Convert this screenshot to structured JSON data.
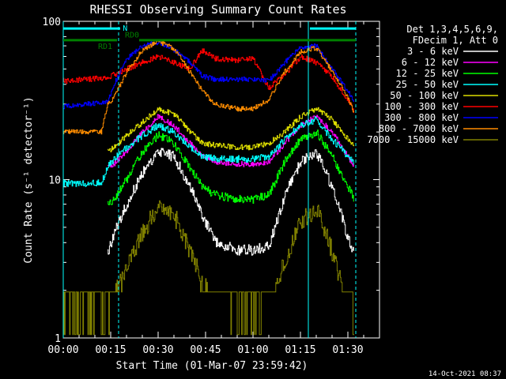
{
  "chart_data": {
    "type": "line",
    "title": "RHESSI Observing Summary Count Rates",
    "xlabel": "Start Time (01-Mar-07 23:59:42)",
    "ylabel": "Count Rate (s⁻¹ detector⁻¹)",
    "yscale": "log",
    "xlim_min": [
      0,
      100
    ],
    "ylim": [
      1,
      100
    ],
    "x_ticks": [
      {
        "v": 0,
        "label": "00:00"
      },
      {
        "v": 15,
        "label": "00:15"
      },
      {
        "v": 30,
        "label": "00:30"
      },
      {
        "v": 45,
        "label": "00:45"
      },
      {
        "v": 60,
        "label": "01:00"
      },
      {
        "v": 75,
        "label": "01:15"
      },
      {
        "v": 90,
        "label": "01:30"
      }
    ],
    "y_ticks": [
      {
        "v": 1,
        "label": "1"
      },
      {
        "v": 10,
        "label": "10"
      },
      {
        "v": 100,
        "label": "100"
      }
    ],
    "legend_placement": "outside-right",
    "legend_header": [
      "Det 1,3,4,5,6,9,",
      "FDecim 1, Att 0"
    ],
    "series": [
      {
        "name": "3 - 6 keV",
        "color": "#ffffff",
        "seed": 11,
        "noise": 0.08,
        "x": [
          14,
          16,
          20,
          25,
          30,
          35,
          40,
          44,
          48,
          55,
          60,
          65,
          70,
          75,
          80,
          85,
          88,
          90,
          92
        ],
        "y": [
          3.5,
          4.5,
          7,
          11,
          15,
          14,
          9,
          6,
          4,
          3.6,
          3.6,
          3.8,
          8,
          13,
          15,
          9,
          6,
          4.2,
          3.4
        ]
      },
      {
        "name": "6 - 12 keV",
        "color": "#ff00ff",
        "seed": 12,
        "noise": 0.04,
        "x": [
          14,
          16,
          20,
          25,
          30,
          35,
          40,
          44,
          48,
          55,
          60,
          65,
          70,
          75,
          80,
          85,
          90,
          92
        ],
        "y": [
          12,
          12.5,
          15,
          20,
          25,
          22,
          17,
          14,
          13,
          12.5,
          12.5,
          13,
          17,
          22,
          25,
          20,
          14,
          12
        ]
      },
      {
        "name": "12 - 25 keV",
        "color": "#00ff00",
        "seed": 13,
        "noise": 0.06,
        "x": [
          14,
          16,
          20,
          25,
          30,
          35,
          40,
          44,
          48,
          55,
          60,
          65,
          70,
          75,
          80,
          85,
          90,
          92
        ],
        "y": [
          7,
          7.5,
          10,
          15,
          19,
          17,
          12,
          9,
          8,
          7.5,
          7.5,
          8,
          13,
          18,
          20,
          14,
          9,
          7.5
        ]
      },
      {
        "name": "25 - 50 keV",
        "color": "#00ffff",
        "seed": 14,
        "noise": 0.05,
        "x": [
          0,
          12,
          14,
          16,
          20,
          25,
          30,
          35,
          40,
          44,
          48,
          55,
          60,
          65,
          70,
          75,
          80,
          85,
          90,
          92
        ],
        "y": [
          9.5,
          9.5,
          12,
          13.5,
          16,
          19,
          22,
          20,
          16,
          14,
          13.5,
          13.5,
          13.5,
          14,
          18,
          22,
          24,
          18,
          14,
          12.5
        ]
      },
      {
        "name": "50 - 100 keV",
        "color": "#dddd00",
        "seed": 15,
        "noise": 0.04,
        "x": [
          14,
          16,
          20,
          25,
          30,
          35,
          40,
          44,
          48,
          55,
          60,
          65,
          70,
          75,
          80,
          85,
          90,
          92
        ],
        "y": [
          15,
          16,
          19,
          23,
          28,
          26,
          20,
          17,
          16.5,
          16,
          16,
          17,
          20,
          25,
          28,
          24,
          18,
          16
        ]
      },
      {
        "name": "100 - 300 keV",
        "color": "#ff0000",
        "seed": 16,
        "noise": 0.04,
        "x": [
          0,
          14,
          16,
          20,
          25,
          30,
          35,
          40,
          44,
          48,
          55,
          60,
          65,
          70,
          75,
          80,
          85,
          90,
          92
        ],
        "y": [
          42,
          44,
          46,
          50,
          55,
          60,
          55,
          50,
          66,
          58,
          57,
          58,
          38,
          46,
          60,
          55,
          45,
          32,
          27
        ]
      },
      {
        "name": "300 - 800 keV",
        "color": "#0000ff",
        "seed": 17,
        "noise": 0.035,
        "x": [
          0,
          14,
          16,
          20,
          25,
          30,
          35,
          40,
          44,
          48,
          55,
          60,
          65,
          70,
          75,
          80,
          85,
          90,
          92
        ],
        "y": [
          29,
          31,
          40,
          58,
          70,
          74,
          66,
          55,
          45,
          43,
          43,
          43,
          42,
          55,
          68,
          70,
          50,
          36,
          31
        ]
      },
      {
        "name": "800 - 7000 keV",
        "color": "#ff8c00",
        "seed": 18,
        "noise": 0.035,
        "x": [
          0,
          12,
          14,
          16,
          20,
          25,
          30,
          35,
          40,
          44,
          48,
          55,
          60,
          65,
          70,
          75,
          80,
          85,
          90,
          92
        ],
        "y": [
          20,
          20,
          30,
          33,
          48,
          66,
          75,
          67,
          48,
          36,
          30,
          28,
          28,
          32,
          48,
          64,
          68,
          48,
          33,
          26
        ]
      },
      {
        "name": "7000 - 15000 keV",
        "color": "#808000",
        "seed": 19,
        "noise": 0.14,
        "x": [
          0,
          14,
          16,
          20,
          25,
          30,
          35,
          40,
          44,
          48,
          55,
          60,
          65,
          70,
          75,
          80,
          85,
          88,
          90,
          92
        ],
        "y": [
          1.5,
          1.5,
          2,
          2.8,
          4.5,
          7,
          6,
          3.5,
          2.3,
          1.7,
          1.5,
          1.5,
          1.6,
          3,
          5.5,
          6.5,
          3.5,
          2.2,
          1.7,
          1.5
        ]
      }
    ],
    "flags": [
      {
        "label": "N",
        "color": "#00ffff",
        "segments": [
          [
            0,
            18
          ],
          [
            78,
            92.5
          ]
        ],
        "y": 90
      },
      {
        "label": "RD0",
        "color": "#008000",
        "segments": [
          [
            0,
            17
          ],
          [
            24,
            43
          ],
          [
            43,
            63
          ],
          [
            63,
            92.5
          ]
        ],
        "y": 76
      },
      {
        "label": "RD1",
        "color": "#ff0000",
        "segments": [],
        "y": 70
      }
    ],
    "verticals": [
      {
        "x": 0,
        "color": "#00ffff",
        "style": "solid"
      },
      {
        "x": 17.5,
        "color": "#00ffff",
        "style": "dashed"
      },
      {
        "x": 77.5,
        "color": "#00ffff",
        "style": "solid"
      },
      {
        "x": 92.5,
        "color": "#00ffff",
        "style": "dashed"
      }
    ],
    "timestamp": "14-Oct-2021 08:37"
  }
}
